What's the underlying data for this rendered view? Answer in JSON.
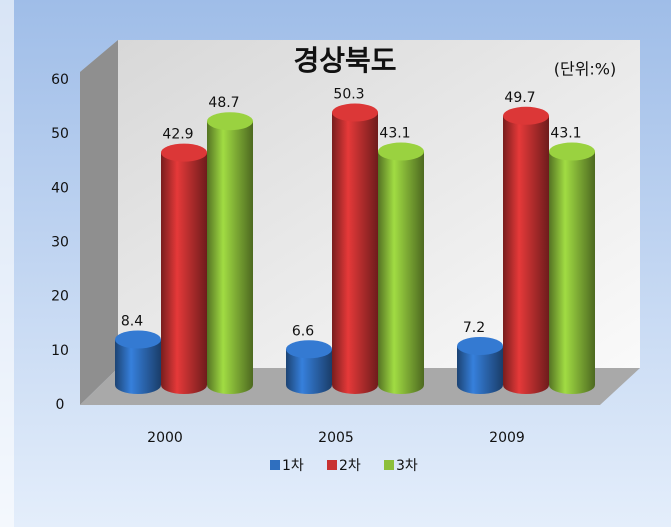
{
  "chart_data": {
    "type": "bar",
    "title": "경상북도",
    "annotation": "(단위:%)",
    "categories": [
      "2000",
      "2005",
      "2009"
    ],
    "series": [
      {
        "name": "1차",
        "color": "#2f6fbf",
        "values": [
          8.4,
          6.6,
          7.2
        ]
      },
      {
        "name": "2차",
        "color": "#c83232",
        "values": [
          42.9,
          50.3,
          49.7
        ]
      },
      {
        "name": "3차",
        "color": "#8cbf3a",
        "values": [
          48.7,
          43.1,
          43.1
        ]
      }
    ],
    "ylim": [
      0,
      60
    ],
    "yticks": [
      0,
      10,
      20,
      30,
      40,
      50,
      60
    ],
    "grid": false,
    "legend": "bottom"
  }
}
